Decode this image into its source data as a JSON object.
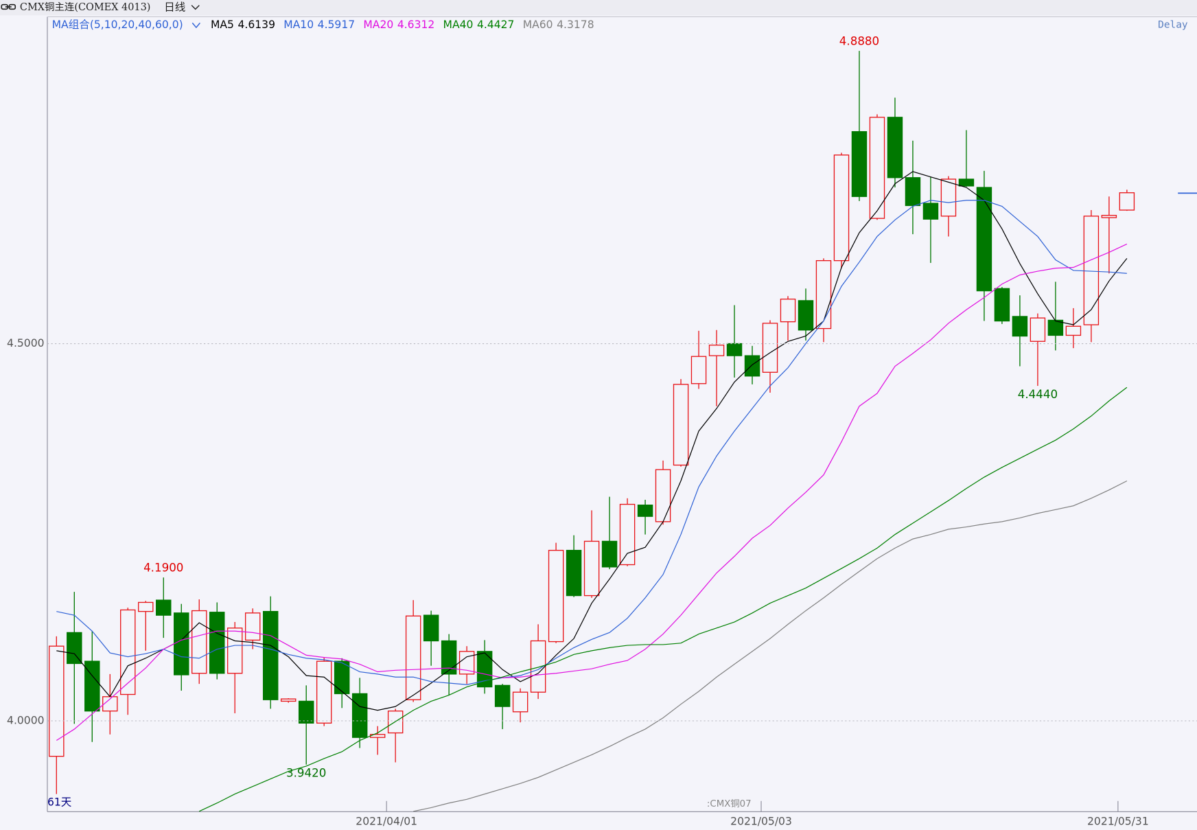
{
  "header": {
    "title": "CMX铜主连(COMEX 4013)",
    "period": "日线",
    "delay": "Delay"
  },
  "chart_data": {
    "type": "candlestick",
    "ma_group": "MA组合(5,10,20,40,60,0)",
    "bar_count": "61天",
    "watermark": "CMX铜07",
    "up_color": "#e8161a",
    "down_color": "#007800",
    "categories": [
      null,
      null,
      null,
      null,
      null,
      null,
      null,
      null,
      null,
      null,
      null,
      null,
      null,
      null,
      null,
      null,
      null,
      null,
      null,
      "2021/04/01",
      null,
      null,
      null,
      null,
      null,
      null,
      null,
      null,
      null,
      null,
      null,
      null,
      null,
      null,
      null,
      null,
      null,
      null,
      null,
      null,
      "2021/05/03",
      null,
      null,
      null,
      null,
      null,
      null,
      null,
      null,
      null,
      null,
      null,
      null,
      null,
      null,
      null,
      null,
      null,
      null,
      null,
      "2021/05/31"
    ],
    "open": [
      3.953,
      4.117,
      4.079,
      4.013,
      4.035,
      4.145,
      4.16,
      4.143,
      4.063,
      4.144,
      4.063,
      4.107,
      4.145,
      4.026,
      4.026,
      3.997,
      4.079,
      4.036,
      3.978,
      3.984,
      4.028,
      4.14,
      4.106,
      4.062,
      4.092,
      4.047,
      4.012,
      4.038,
      4.105,
      4.226,
      4.166,
      4.238,
      4.207,
      4.286,
      4.264,
      4.339,
      4.447,
      4.484,
      4.5,
      4.484,
      4.462,
      4.529,
      4.557,
      4.52,
      4.61,
      4.781,
      4.666,
      4.8,
      4.72,
      4.686,
      4.669,
      4.718,
      4.707,
      4.573,
      4.536,
      4.503,
      4.531,
      4.511,
      4.525,
      4.667,
      4.677
    ],
    "high": [
      4.112,
      4.171,
      4.119,
      4.062,
      4.15,
      4.159,
      4.19,
      4.155,
      4.161,
      4.157,
      4.131,
      4.149,
      4.165,
      4.03,
      4.047,
      4.084,
      4.083,
      4.057,
      3.993,
      4.016,
      4.16,
      4.146,
      4.115,
      4.099,
      4.107,
      4.049,
      4.043,
      4.128,
      4.236,
      4.246,
      4.279,
      4.297,
      4.295,
      4.293,
      4.345,
      4.453,
      4.517,
      4.518,
      4.551,
      4.497,
      4.531,
      4.563,
      4.573,
      4.613,
      4.753,
      4.888,
      4.804,
      4.826,
      4.769,
      4.721,
      4.722,
      4.783,
      4.729,
      4.575,
      4.564,
      4.54,
      4.582,
      4.547,
      4.677,
      4.695,
      4.704
    ],
    "low": [
      3.903,
      3.996,
      3.972,
      3.982,
      4.008,
      4.093,
      4.11,
      4.04,
      4.049,
      4.055,
      4.01,
      4.095,
      4.016,
      4.024,
      3.942,
      3.993,
      4.017,
      3.964,
      3.955,
      3.945,
      4.025,
      4.073,
      4.034,
      4.049,
      4.036,
      3.989,
      3.998,
      4.029,
      4.103,
      4.164,
      4.163,
      4.201,
      4.205,
      4.247,
      4.26,
      4.337,
      4.44,
      4.417,
      4.455,
      4.446,
      4.435,
      4.504,
      4.504,
      4.502,
      4.6,
      4.689,
      4.664,
      4.707,
      4.645,
      4.607,
      4.642,
      4.708,
      4.53,
      4.526,
      4.47,
      4.444,
      4.491,
      4.494,
      4.502,
      4.593,
      4.676
    ],
    "close": [
      4.099,
      4.076,
      4.013,
      4.032,
      4.147,
      4.157,
      4.14,
      4.061,
      4.146,
      4.063,
      4.123,
      4.143,
      4.028,
      4.029,
      3.997,
      4.079,
      4.036,
      3.978,
      3.982,
      4.013,
      4.139,
      4.106,
      4.062,
      4.092,
      4.045,
      4.019,
      4.038,
      4.106,
      4.226,
      4.166,
      4.238,
      4.204,
      4.287,
      4.271,
      4.333,
      4.446,
      4.483,
      4.498,
      4.484,
      4.457,
      4.527,
      4.559,
      4.518,
      4.61,
      4.75,
      4.695,
      4.8,
      4.72,
      4.683,
      4.665,
      4.718,
      4.709,
      4.57,
      4.53,
      4.51,
      4.534,
      4.511,
      4.523,
      4.669,
      4.67,
      4.7
    ],
    "series": [
      {
        "name": "MA5",
        "color": "#000000",
        "current": 4.6139,
        "values": [
          4.093,
          4.089,
          4.06,
          4.032,
          4.073,
          4.083,
          4.095,
          4.107,
          4.13,
          4.116,
          4.106,
          4.104,
          4.1,
          4.085,
          4.06,
          4.058,
          4.039,
          4.019,
          4.014,
          4.019,
          4.034,
          4.05,
          4.067,
          4.085,
          4.09,
          4.068,
          4.052,
          4.063,
          4.087,
          4.109,
          4.156,
          4.188,
          4.222,
          4.23,
          4.264,
          4.318,
          4.384,
          4.414,
          4.449,
          4.472,
          4.488,
          4.503,
          4.51,
          4.53,
          4.601,
          4.647,
          4.676,
          4.712,
          4.728,
          4.721,
          4.714,
          4.707,
          4.69,
          4.652,
          4.606,
          4.566,
          4.53,
          4.525,
          4.545,
          4.583,
          4.613
        ]
      },
      {
        "name": "MA10",
        "color": "#2f62d6",
        "current": 4.5917,
        "values": [
          4.145,
          4.14,
          4.119,
          4.09,
          4.085,
          4.089,
          4.095,
          4.085,
          4.083,
          4.095,
          4.1,
          4.1,
          4.095,
          4.088,
          4.083,
          4.081,
          4.077,
          4.065,
          4.062,
          4.058,
          4.058,
          4.052,
          4.05,
          4.048,
          4.053,
          4.057,
          4.06,
          4.068,
          4.083,
          4.097,
          4.108,
          4.117,
          4.136,
          4.163,
          4.194,
          4.247,
          4.31,
          4.351,
          4.384,
          4.414,
          4.444,
          4.468,
          4.5,
          4.53,
          4.576,
          4.608,
          4.642,
          4.664,
          4.682,
          4.69,
          4.687,
          4.69,
          4.69,
          4.682,
          4.662,
          4.642,
          4.611,
          4.597,
          4.596,
          4.595,
          4.593
        ]
      },
      {
        "name": "MA20",
        "color": "#e010e0",
        "current": 4.6312,
        "values": [
          3.974,
          3.989,
          4.009,
          4.029,
          4.05,
          4.07,
          4.095,
          4.107,
          4.113,
          4.119,
          4.119,
          4.117,
          4.113,
          4.1,
          4.087,
          4.084,
          4.082,
          4.075,
          4.065,
          4.067,
          4.068,
          4.069,
          4.07,
          4.067,
          4.062,
          4.057,
          4.058,
          4.061,
          4.063,
          4.066,
          4.069,
          4.075,
          4.08,
          4.095,
          4.115,
          4.14,
          4.168,
          4.196,
          4.218,
          4.242,
          4.259,
          4.282,
          4.303,
          4.326,
          4.37,
          4.417,
          4.434,
          4.47,
          4.487,
          4.505,
          4.527,
          4.545,
          4.561,
          4.579,
          4.591,
          4.596,
          4.6,
          4.601,
          4.611,
          4.621,
          4.632
        ]
      },
      {
        "name": "MA40",
        "color": "#008000",
        "current": 4.4427,
        "values": [
          null,
          null,
          null,
          null,
          null,
          null,
          null,
          null,
          3.88,
          3.891,
          3.903,
          3.913,
          3.923,
          3.933,
          3.94,
          3.95,
          3.959,
          3.974,
          3.984,
          3.999,
          4.014,
          4.026,
          4.034,
          4.045,
          4.052,
          4.058,
          4.065,
          4.071,
          4.078,
          4.088,
          4.093,
          4.097,
          4.1,
          4.101,
          4.101,
          4.103,
          4.115,
          4.123,
          4.131,
          4.143,
          4.156,
          4.166,
          4.176,
          4.189,
          4.202,
          4.215,
          4.229,
          4.247,
          4.262,
          4.277,
          4.292,
          4.308,
          4.323,
          4.336,
          4.348,
          4.36,
          4.372,
          4.387,
          4.404,
          4.424,
          4.442
        ]
      },
      {
        "name": "MA60",
        "color": "#808080",
        "current": 4.3178,
        "values": [
          null,
          null,
          null,
          null,
          null,
          null,
          null,
          null,
          null,
          null,
          null,
          null,
          null,
          null,
          null,
          null,
          null,
          null,
          null,
          null,
          3.88,
          3.885,
          3.891,
          3.896,
          3.903,
          3.91,
          3.917,
          3.925,
          3.935,
          3.945,
          3.955,
          3.966,
          3.978,
          3.989,
          4.004,
          4.022,
          4.039,
          4.058,
          4.075,
          4.092,
          4.109,
          4.128,
          4.146,
          4.163,
          4.181,
          4.198,
          4.215,
          4.229,
          4.241,
          4.247,
          4.254,
          4.257,
          4.261,
          4.264,
          4.269,
          4.275,
          4.28,
          4.285,
          4.295,
          4.306,
          4.318
        ]
      }
    ],
    "annotations": [
      {
        "value": 4.888,
        "label": "4.8880"
      },
      {
        "value": 4.19,
        "label": "4.1900"
      },
      {
        "value": 3.942,
        "label": "3.9420"
      },
      {
        "value": 4.444,
        "label": "4.4440"
      }
    ],
    "ylim": [
      3.8796,
      4.9332
    ],
    "yticks": [
      {
        "value": 4,
        "label": "4.0000"
      },
      {
        "value": 4.5,
        "label": "4.5000"
      }
    ],
    "grid": true
  }
}
